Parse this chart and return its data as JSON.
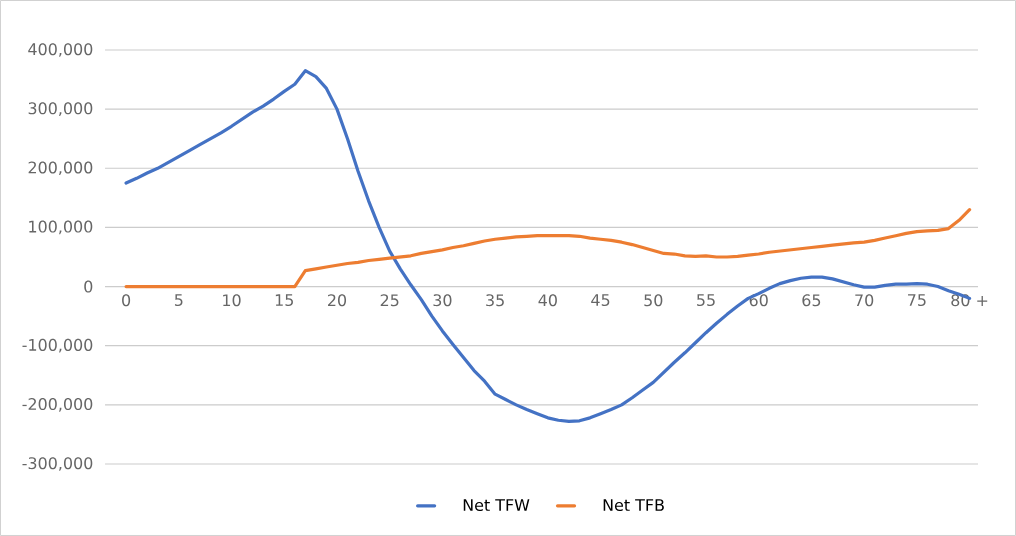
{
  "chart_data": {
    "type": "line",
    "categories": [
      "0",
      null,
      null,
      null,
      null,
      "5",
      null,
      null,
      null,
      null,
      "10",
      null,
      null,
      null,
      null,
      "15",
      null,
      null,
      null,
      null,
      "20",
      null,
      null,
      null,
      null,
      "25",
      null,
      null,
      null,
      null,
      "30",
      null,
      null,
      null,
      null,
      "35",
      null,
      null,
      null,
      null,
      "40",
      null,
      null,
      null,
      null,
      "45",
      null,
      null,
      null,
      null,
      "50",
      null,
      null,
      null,
      null,
      "55",
      null,
      null,
      null,
      null,
      "60",
      null,
      null,
      null,
      null,
      "65",
      null,
      null,
      null,
      null,
      "70",
      null,
      null,
      null,
      null,
      "75",
      null,
      null,
      null,
      null,
      "80 +"
    ],
    "series": [
      {
        "name": "Net TFW",
        "color": "#4472c4",
        "values": [
          175000,
          183000,
          192000,
          200000,
          210000,
          220000,
          230000,
          240000,
          250000,
          260000,
          271000,
          283000,
          295000,
          305000,
          317000,
          330000,
          342000,
          365000,
          355000,
          335000,
          300000,
          250000,
          195000,
          145000,
          100000,
          60000,
          30000,
          3000,
          -22000,
          -50000,
          -75000,
          -98000,
          -120000,
          -142000,
          -160000,
          -182000,
          -191000,
          -200000,
          -208000,
          -215000,
          -222000,
          -226000,
          -228000,
          -227000,
          -222000,
          -215000,
          -208000,
          -200000,
          -188000,
          -175000,
          -162000,
          -145000,
          -128000,
          -112000,
          -95000,
          -78000,
          -62000,
          -47000,
          -33000,
          -20000,
          -12000,
          -3000,
          5000,
          10000,
          14000,
          16000,
          16000,
          13000,
          8000,
          3000,
          -1000,
          -1000,
          2000,
          4000,
          4000,
          5000,
          4000,
          0,
          -7000,
          -13000,
          -20000
        ]
      },
      {
        "name": "Net TFB",
        "color": "#ed7d31",
        "values": [
          0,
          0,
          0,
          0,
          0,
          0,
          0,
          0,
          0,
          0,
          0,
          0,
          0,
          0,
          0,
          0,
          0,
          27000,
          30000,
          33000,
          36000,
          39000,
          41000,
          44000,
          46000,
          48000,
          50000,
          52000,
          56000,
          59000,
          62000,
          66000,
          69000,
          73000,
          77000,
          80000,
          82000,
          84000,
          85000,
          86000,
          86000,
          86000,
          86000,
          85000,
          82000,
          80000,
          78000,
          75000,
          71000,
          66000,
          61000,
          56000,
          55000,
          52000,
          51000,
          52000,
          50000,
          50000,
          51000,
          53000,
          55000,
          58000,
          60000,
          62000,
          64000,
          66000,
          68000,
          70000,
          72000,
          74000,
          75000,
          78000,
          82000,
          86000,
          90000,
          93000,
          94000,
          95000,
          98000,
          112000,
          130000
        ]
      }
    ],
    "ylim": [
      -300000,
      400000
    ],
    "yticks": [
      {
        "value": -300000,
        "label": "-300,000"
      },
      {
        "value": -200000,
        "label": "-200,000"
      },
      {
        "value": -100000,
        "label": "-100,000"
      },
      {
        "value": 0,
        "label": "0"
      },
      {
        "value": 100000,
        "label": "100,000"
      },
      {
        "value": 200000,
        "label": "200,000"
      },
      {
        "value": 300000,
        "label": "300,000"
      },
      {
        "value": 400000,
        "label": "400,000"
      }
    ],
    "grid": "y",
    "legend": "bottom"
  }
}
